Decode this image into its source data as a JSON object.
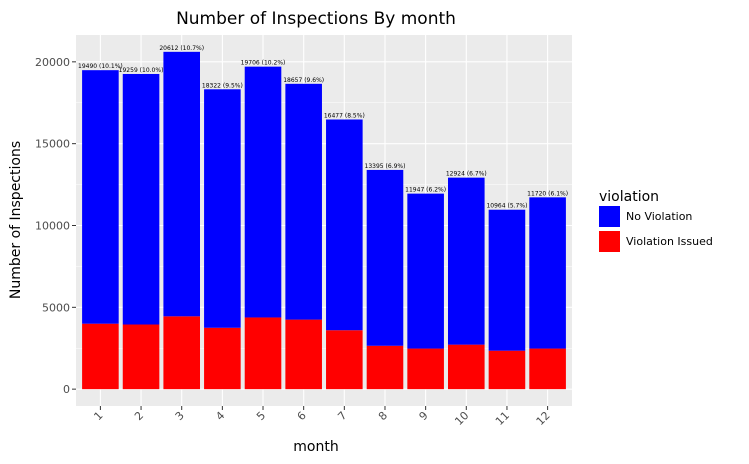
{
  "chart_data": {
    "type": "bar",
    "stacked": true,
    "title": "Number of Inspections By month",
    "xlabel": "month",
    "ylabel": "Number of Inspections",
    "categories": [
      "1",
      "2",
      "3",
      "4",
      "5",
      "6",
      "7",
      "8",
      "9",
      "10",
      "11",
      "12"
    ],
    "series": [
      {
        "name": "Violation Issued",
        "color": "#ff0000",
        "values": [
          4000,
          3950,
          4450,
          3750,
          4380,
          4250,
          3600,
          2650,
          2480,
          2720,
          2350,
          2480
        ]
      },
      {
        "name": "No Violation",
        "color": "#0000ff",
        "values": [
          15490,
          15309,
          16162,
          14572,
          15326,
          14407,
          12877,
          10745,
          9467,
          10204,
          8614,
          9240
        ]
      }
    ],
    "totals": [
      19490,
      19259,
      20612,
      18322,
      19706,
      18657,
      16477,
      13395,
      11947,
      12924,
      10964,
      11720
    ],
    "bar_labels": [
      "19490 (10.1%)",
      "19259 (10.0%)",
      "20612 (10.7%)",
      "18322 (9.5%)",
      "19706 (10.2%)",
      "18657 (9.6%)",
      "16477 (8.5%)",
      "13395 (6.9%)",
      "11947 (6.2%)",
      "12924 (6.7%)",
      "10964 (5.7%)",
      "11720 (6.1%)"
    ],
    "yticks": [
      0,
      5000,
      10000,
      15000,
      20000
    ],
    "ylim": [
      -1030,
      21640
    ],
    "grid": true,
    "legend": {
      "title": "violation",
      "entries": [
        "No Violation",
        "Violation Issued"
      ],
      "placement": "right"
    }
  }
}
